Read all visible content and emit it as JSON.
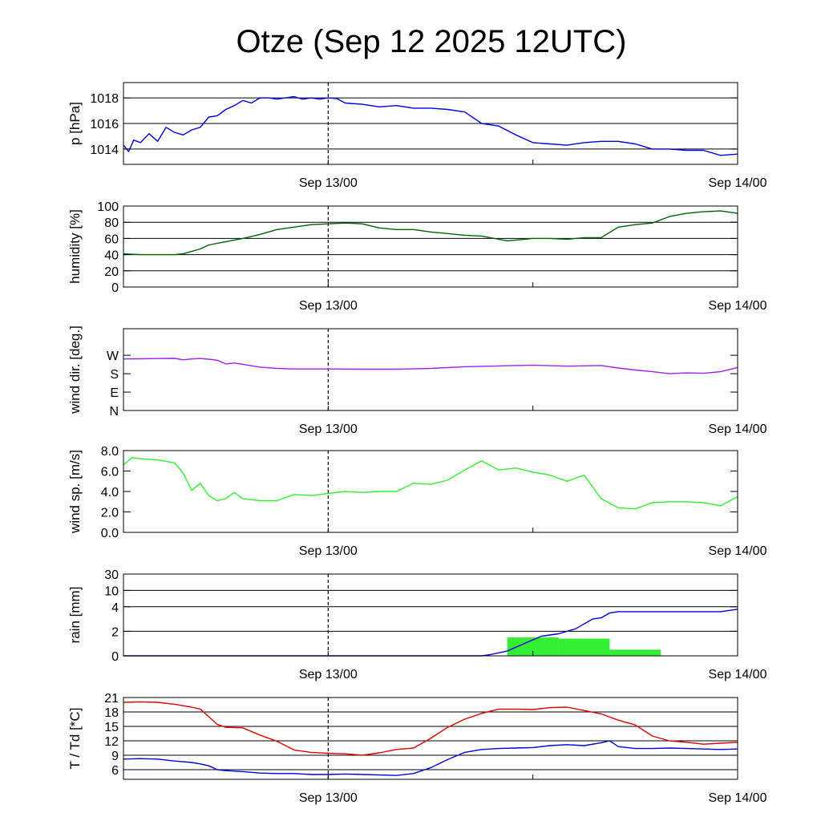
{
  "title": "Otze (Sep 12 2025 12UTC)",
  "colors": {
    "pressure": "#0000dd",
    "humidity": "#006400",
    "wind_dir": "#a020f0",
    "wind_speed": "#33ee33",
    "rain_cum": "#0000dd",
    "rain_bar": "#33ee33",
    "temperature": "#dd0000",
    "dewpoint": "#0000dd",
    "grid": "#000000"
  },
  "chart_data": [
    {
      "id": "pressure",
      "type": "line",
      "ylabel": "p [hPa]",
      "ylim": [
        1012.8,
        1019.2
      ],
      "yticks": [
        {
          "v": 1014,
          "label": "1014"
        },
        {
          "v": 1016,
          "label": "1016"
        },
        {
          "v": 1018,
          "label": "1018"
        }
      ],
      "gridlines": [
        1014,
        1016,
        1018
      ],
      "xlim": [
        0,
        36
      ],
      "xticks": [
        {
          "v": 12,
          "label": "Sep 13/00"
        },
        {
          "v": 36,
          "label": "Sep 14/00"
        }
      ],
      "vline": 12,
      "series": [
        {
          "name": "pressure",
          "color_key": "pressure",
          "x": [
            0,
            0.3,
            0.6,
            1,
            1.5,
            2,
            2.5,
            3,
            3.5,
            4,
            4.5,
            5,
            5.5,
            6,
            6.5,
            7,
            7.5,
            8,
            8.5,
            9,
            9.5,
            10,
            10.5,
            11,
            11.5,
            12,
            12.5,
            13,
            14,
            15,
            16,
            17,
            18,
            19,
            20,
            21,
            22,
            23,
            24,
            25,
            26,
            27,
            28,
            29,
            30,
            31,
            32,
            33,
            34,
            35,
            36
          ],
          "y": [
            1014.3,
            1013.8,
            1014.7,
            1014.5,
            1015.2,
            1014.6,
            1015.7,
            1015.3,
            1015.1,
            1015.5,
            1015.7,
            1016.5,
            1016.6,
            1017.1,
            1017.4,
            1017.8,
            1017.6,
            1018.0,
            1018.0,
            1017.9,
            1018.0,
            1018.1,
            1017.9,
            1018.0,
            1017.9,
            1018.0,
            1017.95,
            1017.6,
            1017.5,
            1017.3,
            1017.4,
            1017.2,
            1017.2,
            1017.1,
            1016.9,
            1016.0,
            1015.8,
            1015.1,
            1014.5,
            1014.4,
            1014.3,
            1014.5,
            1014.6,
            1014.6,
            1014.4,
            1014.0,
            1014.0,
            1013.9,
            1013.9,
            1013.5,
            1013.6
          ]
        }
      ]
    },
    {
      "id": "humidity",
      "type": "line",
      "ylabel": "humidity [%]",
      "ylim": [
        0,
        100
      ],
      "yticks": [
        {
          "v": 0,
          "label": "0"
        },
        {
          "v": 20,
          "label": "20"
        },
        {
          "v": 40,
          "label": "40"
        },
        {
          "v": 60,
          "label": "60"
        },
        {
          "v": 80,
          "label": "80"
        },
        {
          "v": 100,
          "label": "100"
        }
      ],
      "gridlines": [
        20,
        40,
        60,
        80
      ],
      "xlim": [
        0,
        36
      ],
      "xticks": [
        {
          "v": 12,
          "label": "Sep 13/00"
        },
        {
          "v": 36,
          "label": "Sep 14/00"
        }
      ],
      "vline": 12,
      "series": [
        {
          "name": "humidity",
          "color_key": "humidity",
          "x": [
            0,
            1,
            2,
            3,
            3.5,
            4,
            4.5,
            5,
            6,
            7,
            8,
            9,
            10,
            11,
            12,
            13,
            14,
            15,
            16,
            17,
            18,
            19,
            20,
            21,
            22,
            22.5,
            23,
            24,
            25,
            26,
            27,
            28,
            29,
            30,
            31,
            32,
            33,
            34,
            35,
            36
          ],
          "y": [
            41,
            40,
            40,
            40,
            41,
            44,
            47,
            52,
            56,
            60,
            65,
            71,
            74,
            77,
            78,
            79,
            78,
            73,
            71,
            71,
            68,
            66,
            64,
            63,
            59,
            57,
            58,
            60,
            60,
            59,
            61,
            61,
            74,
            77,
            79,
            87,
            91,
            93,
            94,
            91
          ]
        }
      ]
    },
    {
      "id": "wind_dir",
      "type": "line",
      "ylabel": "wind dir. [deg.]",
      "ylim": [
        0,
        400
      ],
      "yticks": [
        {
          "v": 0,
          "label": "N"
        },
        {
          "v": 90,
          "label": "E"
        },
        {
          "v": 180,
          "label": "S"
        },
        {
          "v": 270,
          "label": "W"
        }
      ],
      "gridlines": [],
      "xlim": [
        0,
        36
      ],
      "xticks": [
        {
          "v": 12,
          "label": "Sep 13/00"
        },
        {
          "v": 36,
          "label": "Sep 14/00"
        }
      ],
      "vline": 12,
      "series": [
        {
          "name": "wind direction",
          "color_key": "wind_dir",
          "x": [
            0,
            1,
            2,
            3,
            3.5,
            4,
            4.5,
            5,
            5.5,
            6,
            6.5,
            7,
            8,
            9,
            10,
            11,
            12,
            14,
            16,
            18,
            20,
            22,
            24,
            26,
            28,
            29,
            30,
            31,
            32,
            33,
            34,
            35,
            36
          ],
          "y": [
            252,
            253,
            254,
            255,
            248,
            252,
            254,
            251,
            246,
            228,
            232,
            226,
            212,
            206,
            203,
            203,
            203,
            202,
            202,
            206,
            214,
            218,
            222,
            217,
            220,
            208,
            198,
            190,
            180,
            184,
            182,
            190,
            210
          ]
        }
      ]
    },
    {
      "id": "wind_speed",
      "type": "line",
      "ylabel": "wind sp. [m/s]",
      "ylim": [
        0,
        8
      ],
      "yticks": [
        {
          "v": 0,
          "label": "0.0"
        },
        {
          "v": 2,
          "label": "2.0"
        },
        {
          "v": 4,
          "label": "4.0"
        },
        {
          "v": 6,
          "label": "6.0"
        },
        {
          "v": 8,
          "label": "8.0"
        }
      ],
      "gridlines": [],
      "xlim": [
        0,
        36
      ],
      "xticks": [
        {
          "v": 12,
          "label": "Sep 13/00"
        },
        {
          "v": 36,
          "label": "Sep 14/00"
        }
      ],
      "vline": 12,
      "series": [
        {
          "name": "wind speed",
          "color_key": "wind_speed",
          "x": [
            0,
            0.5,
            1,
            2,
            3,
            3.5,
            4,
            4.5,
            5,
            5.5,
            6,
            6.5,
            7,
            8,
            9,
            10,
            11,
            12,
            13,
            14,
            15,
            16,
            17,
            18,
            19,
            20,
            21,
            22,
            23,
            24,
            25,
            26,
            27,
            28,
            29,
            30,
            31,
            32,
            33,
            34,
            35,
            36
          ],
          "y": [
            6.6,
            7.3,
            7.2,
            7.1,
            6.8,
            5.8,
            4.1,
            4.8,
            3.6,
            3.1,
            3.3,
            3.9,
            3.3,
            3.1,
            3.1,
            3.7,
            3.6,
            3.8,
            4.0,
            3.9,
            4.0,
            4.0,
            4.8,
            4.7,
            5.1,
            6.1,
            7.0,
            6.1,
            6.3,
            5.9,
            5.6,
            5.0,
            5.6,
            3.3,
            2.4,
            2.3,
            2.9,
            3.0,
            3.0,
            2.9,
            2.6,
            3.5
          ]
        }
      ]
    },
    {
      "id": "rain",
      "type": "bar+line",
      "ylabel": "rain [mm]",
      "scale": "rain",
      "ylim": [
        0,
        30
      ],
      "yticks": [
        {
          "v": 0,
          "label": "0"
        },
        {
          "v": 2,
          "label": "2"
        },
        {
          "v": 4,
          "label": "4"
        },
        {
          "v": 10,
          "label": "10"
        },
        {
          "v": 30,
          "label": "30"
        }
      ],
      "gridlines": [
        2,
        4,
        10,
        30
      ],
      "xlim": [
        0,
        36
      ],
      "xticks": [
        {
          "v": 12,
          "label": "Sep 13/00"
        },
        {
          "v": 36,
          "label": "Sep 14/00"
        }
      ],
      "vline": 12,
      "bars": [
        {
          "x0": 22.5,
          "x1": 25.5,
          "value": 1.5
        },
        {
          "x0": 25.5,
          "x1": 28.5,
          "value": 1.4
        },
        {
          "x0": 28.5,
          "x1": 31.5,
          "value": 0.5
        }
      ],
      "series": [
        {
          "name": "cumulative rain",
          "color_key": "rain_cum",
          "x": [
            0,
            21,
            21.5,
            22.5,
            23.5,
            24.5,
            25.5,
            26,
            26.5,
            27,
            27.5,
            28,
            28.5,
            29,
            30,
            31,
            32,
            33,
            34,
            35,
            36
          ],
          "y": [
            0,
            0,
            0.1,
            0.4,
            1.0,
            1.6,
            1.8,
            2.0,
            2.2,
            2.6,
            3.0,
            3.1,
            3.5,
            3.6,
            3.6,
            3.6,
            3.6,
            3.6,
            3.6,
            3.6,
            3.8
          ]
        }
      ]
    },
    {
      "id": "temperature",
      "type": "line",
      "ylabel": "T / Td [*C]",
      "ylim": [
        4,
        21
      ],
      "yticks": [
        {
          "v": 6,
          "label": "6"
        },
        {
          "v": 9,
          "label": "9"
        },
        {
          "v": 12,
          "label": "12"
        },
        {
          "v": 15,
          "label": "15"
        },
        {
          "v": 18,
          "label": "18"
        },
        {
          "v": 21,
          "label": "21"
        }
      ],
      "gridlines": [
        6,
        9,
        12,
        15,
        18,
        21
      ],
      "xlim": [
        0,
        36
      ],
      "xticks": [
        {
          "v": 12,
          "label": "Sep 13/00"
        },
        {
          "v": 36,
          "label": "Sep 14/00"
        }
      ],
      "vline": 12,
      "series": [
        {
          "name": "temperature",
          "color_key": "temperature",
          "x": [
            0,
            1,
            2,
            3,
            4,
            4.5,
            5,
            5.5,
            6,
            7,
            8,
            9,
            10,
            11,
            12,
            13,
            14,
            15,
            16,
            17,
            18,
            19,
            20,
            21,
            22,
            23,
            24,
            25,
            26,
            27,
            28,
            29,
            30,
            31,
            32,
            33,
            34,
            35,
            36
          ],
          "y": [
            20.0,
            20.1,
            20.0,
            19.6,
            19.0,
            18.6,
            17.0,
            15.4,
            14.8,
            14.7,
            13.2,
            11.9,
            10.1,
            9.6,
            9.4,
            9.3,
            9.0,
            9.5,
            10.2,
            10.5,
            12.5,
            14.8,
            16.5,
            17.7,
            18.6,
            18.6,
            18.5,
            18.9,
            19.0,
            18.3,
            17.6,
            16.3,
            15.3,
            13.0,
            12.0,
            11.7,
            11.3,
            11.5,
            11.7
          ]
        },
        {
          "name": "dewpoint",
          "color_key": "dewpoint",
          "x": [
            0,
            1,
            2,
            3,
            4,
            4.5,
            5,
            5.5,
            6,
            7,
            8,
            9,
            10,
            11,
            12,
            13,
            14,
            15,
            16,
            17,
            18,
            19,
            20,
            21,
            22,
            23,
            24,
            25,
            26,
            27,
            28,
            28.5,
            29,
            30,
            31,
            32,
            33,
            34,
            35,
            36
          ],
          "y": [
            8.2,
            8.3,
            8.2,
            7.8,
            7.5,
            7.2,
            6.8,
            6.0,
            5.8,
            5.6,
            5.3,
            5.2,
            5.2,
            5.0,
            5.0,
            5.1,
            5.0,
            4.9,
            4.8,
            5.2,
            6.4,
            8.1,
            9.6,
            10.2,
            10.4,
            10.5,
            10.6,
            11.0,
            11.2,
            11.0,
            11.6,
            12.0,
            10.8,
            10.4,
            10.4,
            10.5,
            10.4,
            10.3,
            10.2,
            10.3
          ]
        }
      ]
    }
  ]
}
